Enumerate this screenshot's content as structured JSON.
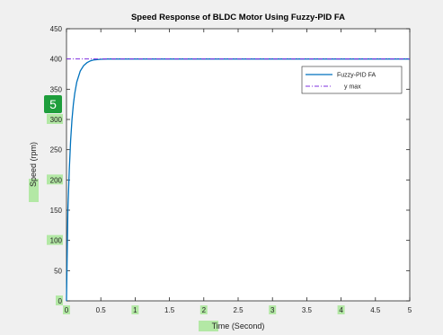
{
  "chart_data": {
    "type": "line",
    "title": "Speed Response of BLDC Motor Using Fuzzy-PID FA",
    "xlabel_highlight": "Time",
    "xlabel_rest": " (Second)",
    "ylabel_highlight": "Speed",
    "ylabel_rest": " (rpm)",
    "xlim": [
      0,
      5
    ],
    "ylim": [
      0,
      450
    ],
    "x_ticks": [
      "0",
      "0.5",
      "1",
      "1.5",
      "2",
      "2.5",
      "3",
      "3.5",
      "4",
      "4.5",
      "5"
    ],
    "y_ticks": [
      "0",
      "50",
      "100",
      "150",
      "200",
      "250",
      "300",
      "350",
      "400",
      "450"
    ],
    "x_ticks_highlighted": [
      "0",
      "1",
      "2",
      "3",
      "4"
    ],
    "y_ticks_highlighted": [
      "0",
      "100",
      "200",
      "300"
    ],
    "grid": false,
    "legend_placement": "top-right",
    "series": [
      {
        "name": "Fuzzy-PID FA",
        "color": "#0072bd",
        "style": "solid",
        "x": [
          0,
          0.02,
          0.04,
          0.06,
          0.08,
          0.1,
          0.12,
          0.15,
          0.2,
          0.25,
          0.3,
          0.35,
          0.4,
          0.5,
          0.6,
          0.7,
          0.8,
          1.0,
          5.0
        ],
        "y": [
          0,
          150,
          215,
          265,
          300,
          325,
          343,
          362,
          380,
          389,
          394,
          397,
          398.5,
          399.5,
          400,
          400,
          400,
          400,
          400
        ]
      },
      {
        "name": "y max",
        "color": "#7e2fdf",
        "style": "dashdot",
        "x": [
          0,
          5
        ],
        "y": [
          400,
          400
        ]
      }
    ]
  },
  "annotation_badge": "5",
  "colors": {
    "plot_bg": "#ffffff",
    "page_bg": "#f0f0f0",
    "highlight": "#9fe58c"
  }
}
